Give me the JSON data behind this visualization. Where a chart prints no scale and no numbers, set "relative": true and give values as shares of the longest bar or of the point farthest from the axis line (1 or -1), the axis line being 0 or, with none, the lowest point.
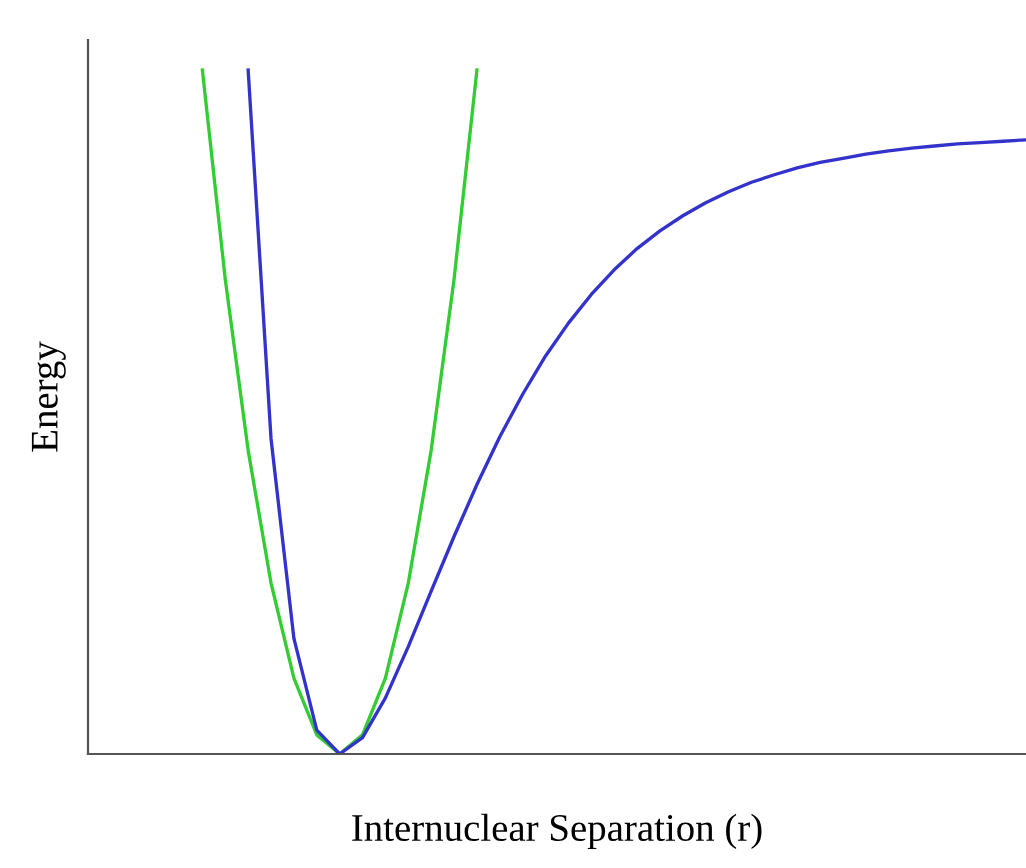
{
  "chart_data": {
    "type": "line",
    "relative": true,
    "xlabel": "Internuclear Separation (r)",
    "ylabel": "Energy",
    "categories": [
      null,
      null,
      null,
      null,
      null,
      null,
      null,
      null,
      null,
      null,
      null,
      null,
      null,
      null,
      null,
      null,
      null,
      null,
      null,
      null,
      null,
      null,
      null,
      null,
      null,
      null,
      null,
      null,
      null,
      null,
      null,
      null,
      null,
      null,
      null,
      null,
      null,
      null,
      null,
      null,
      null,
      null
    ],
    "series": [
      {
        "color": "#33cc33",
        "values": [
          null,
          null,
          null,
          null,
          null,
          1,
          0.694,
          0.444,
          0.25,
          0.111,
          0.028,
          0,
          0.028,
          0.111,
          0.25,
          0.444,
          0.694,
          1,
          null,
          null,
          null,
          null,
          null,
          null,
          null,
          null,
          null,
          null,
          null,
          null,
          null,
          null,
          null,
          null,
          null,
          null,
          null,
          null,
          null,
          null,
          null,
          null
        ]
      },
      {
        "color": "#3333cc",
        "values": [
          null,
          null,
          null,
          null,
          null,
          null,
          null,
          1,
          0.461,
          0.169,
          0.035,
          0,
          0.024,
          0.082,
          0.157,
          0.238,
          0.318,
          0.394,
          0.464,
          0.526,
          0.582,
          0.63,
          0.672,
          0.708,
          0.739,
          0.765,
          0.787,
          0.806,
          0.822,
          0.836,
          0.847,
          0.857,
          0.865,
          0.871,
          0.877,
          0.882,
          0.886,
          0.889,
          0.892,
          0.894,
          0.896,
          0.898
        ]
      }
    ],
    "grid": false,
    "legend": false,
    "marker": "none",
    "line_style": "solid"
  }
}
